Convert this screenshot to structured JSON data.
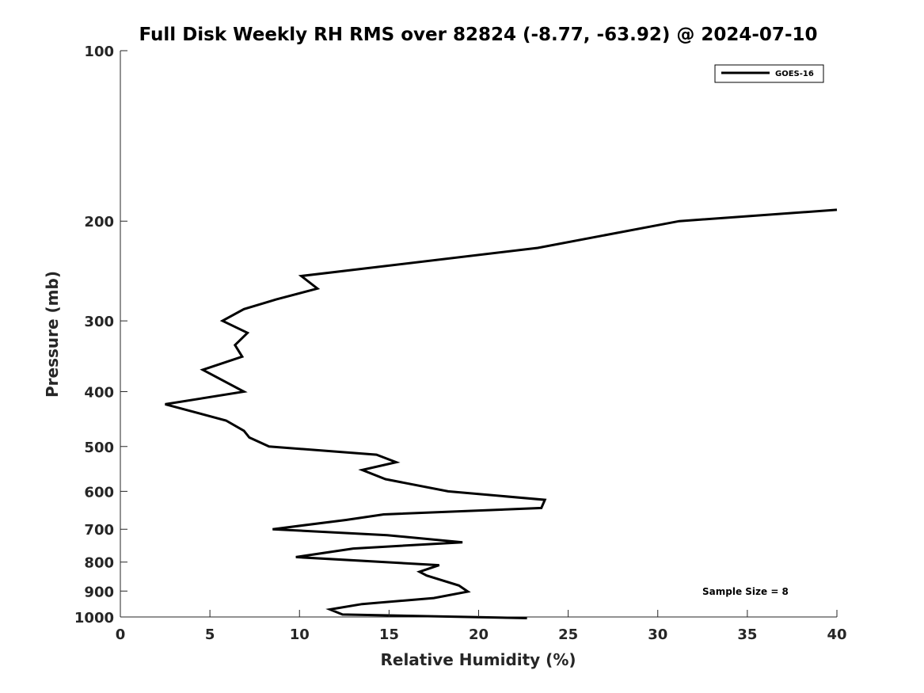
{
  "chart_data": {
    "type": "line",
    "title": "Full Disk Weekly RH RMS over 82824 (-8.77, -63.92) @ 2024-07-10",
    "xlabel": "Relative Humidity (%)",
    "ylabel": "Pressure (mb)",
    "xlim": [
      0,
      40
    ],
    "ylim": [
      100,
      1000
    ],
    "y_scale": "log",
    "y_reversed": true,
    "x_ticks": [
      0,
      5,
      10,
      15,
      20,
      25,
      30,
      35,
      40
    ],
    "y_ticks": [
      100,
      200,
      300,
      400,
      500,
      600,
      700,
      800,
      900,
      1000
    ],
    "grid": false,
    "legend_position": "top-right",
    "annotation": "Sample Size = 8",
    "series": [
      {
        "name": "GOES-16",
        "color": "#000000",
        "points": [
          [
            40.0,
            191
          ],
          [
            31.2,
            200
          ],
          [
            23.3,
            223
          ],
          [
            10.1,
            250
          ],
          [
            11.0,
            263
          ],
          [
            8.7,
            275
          ],
          [
            6.9,
            286
          ],
          [
            5.7,
            300
          ],
          [
            7.1,
            315
          ],
          [
            6.4,
            331
          ],
          [
            6.8,
            347
          ],
          [
            4.6,
            366
          ],
          [
            6.9,
            400
          ],
          [
            2.5,
            421
          ],
          [
            5.9,
            450
          ],
          [
            6.9,
            469
          ],
          [
            7.2,
            482
          ],
          [
            8.3,
            500
          ],
          [
            14.3,
            517
          ],
          [
            15.4,
            533
          ],
          [
            13.5,
            550
          ],
          [
            14.8,
            571
          ],
          [
            18.3,
            600
          ],
          [
            23.7,
            621
          ],
          [
            23.5,
            642
          ],
          [
            14.7,
            659
          ],
          [
            12.6,
            674
          ],
          [
            8.5,
            700
          ],
          [
            14.9,
            717
          ],
          [
            19.1,
            738
          ],
          [
            13.0,
            757
          ],
          [
            9.8,
            784
          ],
          [
            17.8,
            810
          ],
          [
            16.7,
            832
          ],
          [
            17.1,
            845
          ],
          [
            18.9,
            880
          ],
          [
            19.4,
            902
          ],
          [
            17.5,
            926
          ],
          [
            13.5,
            949
          ],
          [
            11.7,
            970
          ],
          [
            12.4,
            990
          ],
          [
            22.7,
            1005
          ]
        ]
      }
    ]
  }
}
